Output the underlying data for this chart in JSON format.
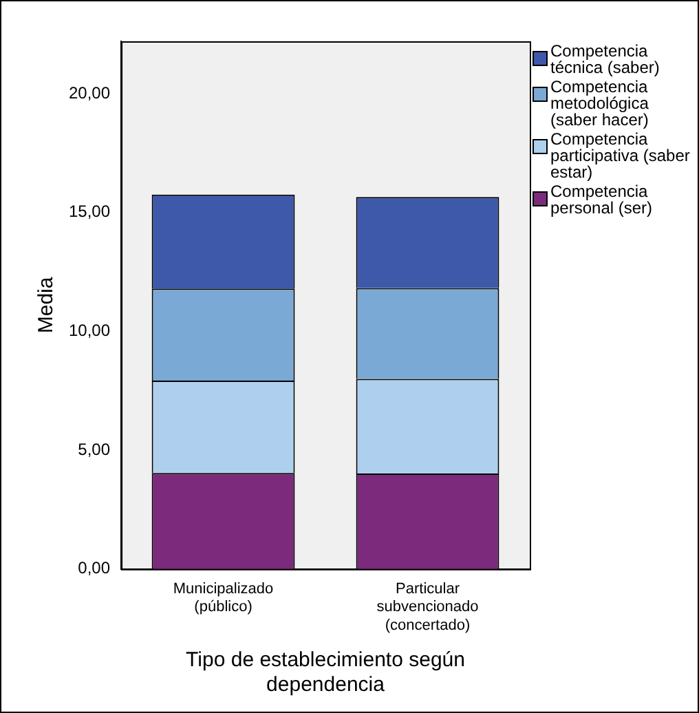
{
  "chart_data": {
    "type": "bar",
    "stacked": true,
    "xlabel": "Tipo de establecimiento según dependencia",
    "ylabel": "Media",
    "categories": [
      "Municipalizado (público)",
      "Particular subvencionado (concertado)"
    ],
    "series": [
      {
        "name": "Competencia personal (ser)",
        "color": "#7b2a7c",
        "values": [
          4.04,
          4.02
        ]
      },
      {
        "name": "Competencia participativa (saber estar)",
        "color": "#aed0ee",
        "values": [
          3.89,
          3.98
        ]
      },
      {
        "name": "Competencia metodológica (saber hacer)",
        "color": "#7aa9d6",
        "values": [
          3.87,
          3.82
        ]
      },
      {
        "name": "Competencia técnica (saber)",
        "color": "#3e58aa",
        "values": [
          3.95,
          3.83
        ]
      }
    ],
    "ylim": [
      0,
      22.2
    ],
    "yticks": [
      {
        "value": 0,
        "label": "0,00"
      },
      {
        "value": 5,
        "label": "5,00"
      },
      {
        "value": 10,
        "label": "10,00"
      },
      {
        "value": 15,
        "label": "15,00"
      },
      {
        "value": 20,
        "label": "20,00"
      }
    ],
    "grid": false,
    "legend": "right"
  }
}
